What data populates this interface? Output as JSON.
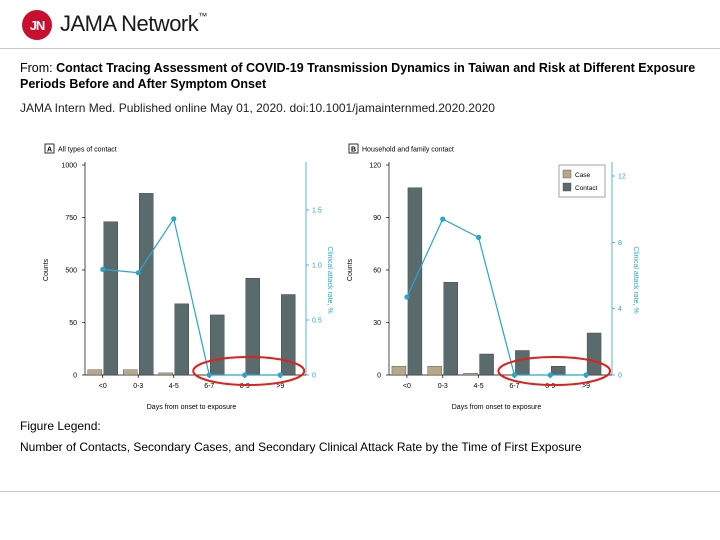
{
  "header": {
    "logo_mark": "JN",
    "logo_name": "JAMA Network",
    "logo_tm": "™"
  },
  "article": {
    "from_label": "From:",
    "title": "Contact Tracing Assessment of COVID-19 Transmission Dynamics in Taiwan and Risk at Different Exposure Periods Before and After Symptom Onset",
    "citation": "JAMA Intern Med. Published online May 01, 2020. doi:10.1001/jamainternmed.2020.2020"
  },
  "figure_legend": {
    "heading": "Figure Legend:",
    "text": "Number of Contacts, Secondary Cases, and Secondary Clinical Attack Rate by the Time of First Exposure"
  },
  "colors": {
    "case": "#b8a88a",
    "contact": "#5a6b6e",
    "attack_rate": "#29a6c9",
    "highlight_circle": "#e0201a"
  },
  "chart_data": [
    {
      "type": "bar",
      "panel_letter": "A",
      "panel_title": "All types of contact",
      "categories": [
        "<0",
        "0-3",
        "4-5",
        "6-7",
        "8-9",
        ">9"
      ],
      "yticks": [
        "0",
        "50",
        "500",
        "750",
        "1000"
      ],
      "ytick_values": [
        0,
        50,
        500,
        750,
        1000
      ],
      "y2ticks": [
        "0",
        "0.5",
        "1.0",
        "1.5"
      ],
      "y2tick_values": [
        0,
        0.5,
        1.0,
        1.5
      ],
      "ylim": [
        0,
        1000
      ],
      "y2lim": [
        0,
        1.8
      ],
      "ylabel": "Counts",
      "y2label": "Clinical attack rate, %",
      "xlabel": "Days from onset to exposure",
      "series": [
        {
          "name": "Case",
          "values": [
            5,
            5,
            2,
            0,
            0,
            0
          ]
        },
        {
          "name": "Contact",
          "values": [
            730,
            865,
            210,
            115,
            430,
            290
          ]
        },
        {
          "name": "Clinical attack rate",
          "values": [
            0.96,
            0.93,
            1.42,
            0,
            0,
            0
          ]
        }
      ],
      "legend": "none",
      "annotation": "red ellipse around days 6-7 to >9 at rate 0"
    },
    {
      "type": "bar",
      "panel_letter": "B",
      "panel_title": "Household and family contact",
      "categories": [
        "<0",
        "0-3",
        "4-5",
        "6-7",
        "8-9",
        ">9"
      ],
      "yticks": [
        "0",
        "30",
        "60",
        "90",
        "120"
      ],
      "ytick_values": [
        0,
        30,
        60,
        90,
        120
      ],
      "y2ticks": [
        "0",
        "4",
        "8",
        "12"
      ],
      "y2tick_values": [
        0,
        4,
        8,
        12
      ],
      "ylim": [
        0,
        120
      ],
      "y2lim": [
        0,
        12
      ],
      "ylabel": "Counts",
      "y2label": "Clinical attack rate, %",
      "xlabel": "Days from onset to exposure",
      "series": [
        {
          "name": "Case",
          "values": [
            5,
            5,
            1,
            0,
            0,
            0
          ]
        },
        {
          "name": "Contact",
          "values": [
            107,
            53,
            12,
            14,
            5,
            24
          ]
        },
        {
          "name": "Clinical attack rate",
          "values": [
            4.7,
            9.4,
            8.3,
            0,
            0,
            0
          ]
        }
      ],
      "legend": "top-right",
      "legend_entries": [
        "Case",
        "Contact"
      ],
      "annotation": "red ellipse around days 6-7 to >9 at rate 0"
    }
  ]
}
